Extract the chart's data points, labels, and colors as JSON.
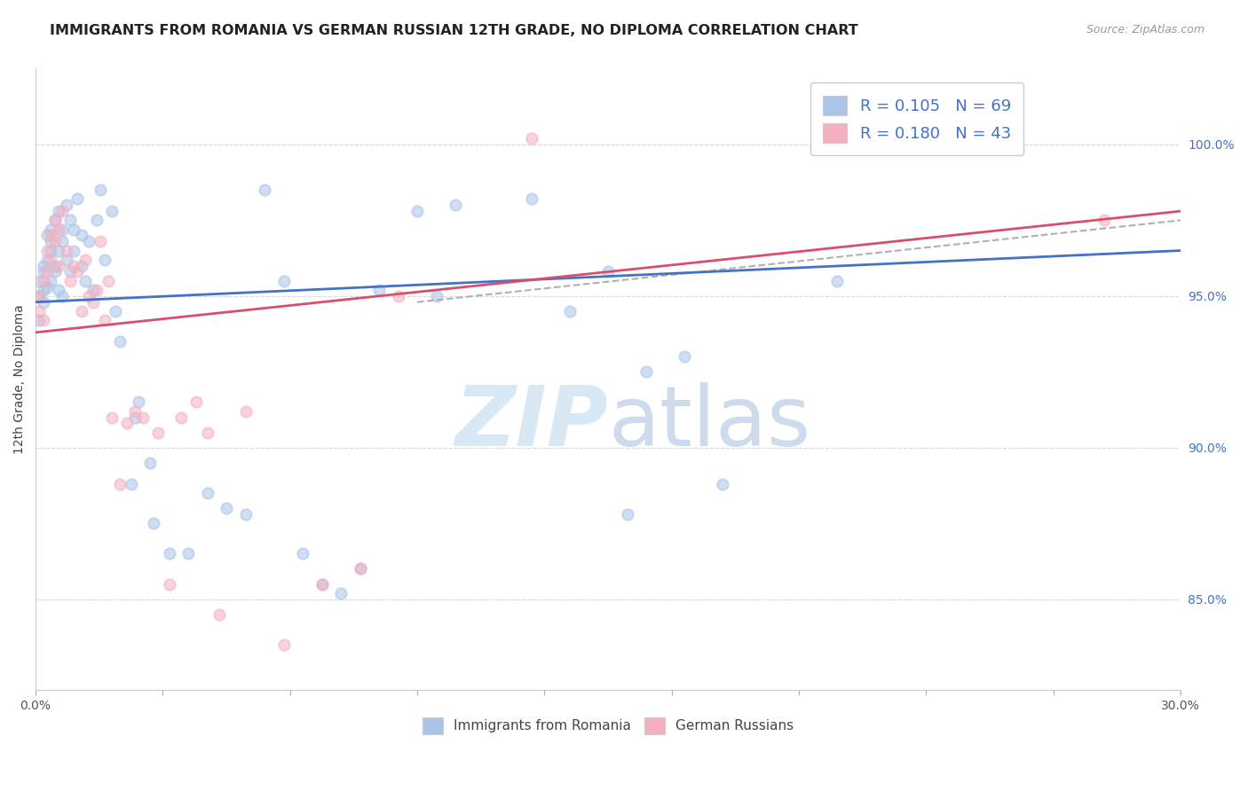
{
  "title": "IMMIGRANTS FROM ROMANIA VS GERMAN RUSSIAN 12TH GRADE, NO DIPLOMA CORRELATION CHART",
  "source": "Source: ZipAtlas.com",
  "ylabel": "12th Grade, No Diploma",
  "xlim": [
    0.0,
    0.3
  ],
  "ylim": [
    82.0,
    102.5
  ],
  "ytick_positions": [
    85.0,
    90.0,
    95.0,
    100.0
  ],
  "ytick_labels": [
    "85.0%",
    "90.0%",
    "95.0%",
    "100.0%"
  ],
  "xtick_positions": [
    0.0,
    0.03333,
    0.06667,
    0.1,
    0.13333,
    0.16667,
    0.2,
    0.23333,
    0.26667,
    0.3
  ],
  "romania_scatter_x": [
    0.001,
    0.001,
    0.001,
    0.002,
    0.002,
    0.002,
    0.002,
    0.003,
    0.003,
    0.003,
    0.004,
    0.004,
    0.004,
    0.004,
    0.005,
    0.005,
    0.005,
    0.006,
    0.006,
    0.006,
    0.007,
    0.007,
    0.007,
    0.008,
    0.008,
    0.009,
    0.009,
    0.01,
    0.01,
    0.011,
    0.012,
    0.012,
    0.013,
    0.014,
    0.015,
    0.016,
    0.017,
    0.018,
    0.02,
    0.021,
    0.022,
    0.025,
    0.026,
    0.027,
    0.03,
    0.031,
    0.035,
    0.04,
    0.045,
    0.05,
    0.055,
    0.06,
    0.065,
    0.07,
    0.075,
    0.08,
    0.085,
    0.09,
    0.1,
    0.105,
    0.11,
    0.13,
    0.14,
    0.15,
    0.155,
    0.16,
    0.17,
    0.18,
    0.21
  ],
  "romania_scatter_y": [
    94.2,
    95.0,
    95.5,
    94.8,
    95.2,
    95.8,
    96.0,
    95.3,
    96.2,
    97.0,
    96.5,
    97.2,
    95.5,
    96.8,
    97.5,
    96.0,
    95.8,
    97.8,
    96.5,
    95.2,
    97.2,
    96.8,
    95.0,
    98.0,
    96.2,
    97.5,
    95.8,
    96.5,
    97.2,
    98.2,
    96.0,
    97.0,
    95.5,
    96.8,
    95.2,
    97.5,
    98.5,
    96.2,
    97.8,
    94.5,
    93.5,
    88.8,
    91.0,
    91.5,
    89.5,
    87.5,
    86.5,
    86.5,
    88.5,
    88.0,
    87.8,
    98.5,
    95.5,
    86.5,
    85.5,
    85.2,
    86.0,
    95.2,
    97.8,
    95.0,
    98.0,
    98.2,
    94.5,
    95.8,
    87.8,
    92.5,
    93.0,
    88.8,
    95.5
  ],
  "german_scatter_x": [
    0.001,
    0.001,
    0.002,
    0.002,
    0.003,
    0.003,
    0.004,
    0.004,
    0.005,
    0.005,
    0.006,
    0.006,
    0.007,
    0.008,
    0.009,
    0.01,
    0.011,
    0.012,
    0.013,
    0.014,
    0.015,
    0.016,
    0.017,
    0.018,
    0.019,
    0.02,
    0.022,
    0.024,
    0.026,
    0.028,
    0.032,
    0.035,
    0.038,
    0.042,
    0.045,
    0.048,
    0.055,
    0.065,
    0.075,
    0.085,
    0.095,
    0.13,
    0.28
  ],
  "german_scatter_y": [
    94.5,
    95.0,
    95.5,
    94.2,
    95.8,
    96.5,
    97.0,
    96.2,
    97.5,
    96.8,
    97.2,
    96.0,
    97.8,
    96.5,
    95.5,
    96.0,
    95.8,
    94.5,
    96.2,
    95.0,
    94.8,
    95.2,
    96.8,
    94.2,
    95.5,
    91.0,
    88.8,
    90.8,
    91.2,
    91.0,
    90.5,
    85.5,
    91.0,
    91.5,
    90.5,
    84.5,
    91.2,
    83.5,
    85.5,
    86.0,
    95.0,
    100.2,
    97.5
  ],
  "romania_color": "#aac4e8",
  "german_color": "#f4b0c0",
  "romania_line_color": "#4472c4",
  "german_line_color": "#d94f6a",
  "trend_line_color": "#b0b0b0",
  "background_color": "#ffffff",
  "grid_color": "#d8d8d8",
  "title_fontsize": 11.5,
  "axis_label_fontsize": 10,
  "tick_fontsize": 10,
  "scatter_size": 80,
  "scatter_alpha": 0.55,
  "watermark_color": "#d8e8f5",
  "romania_trend_x0": 0.0,
  "romania_trend_y0": 94.8,
  "romania_trend_x1": 0.3,
  "romania_trend_y1": 96.5,
  "german_trend_x0": 0.0,
  "german_trend_y0": 93.8,
  "german_trend_x1": 0.3,
  "german_trend_y1": 97.8,
  "dashed_trend_x0": 0.1,
  "dashed_trend_y0": 94.8,
  "dashed_trend_x1": 0.3,
  "dashed_trend_y1": 97.5
}
